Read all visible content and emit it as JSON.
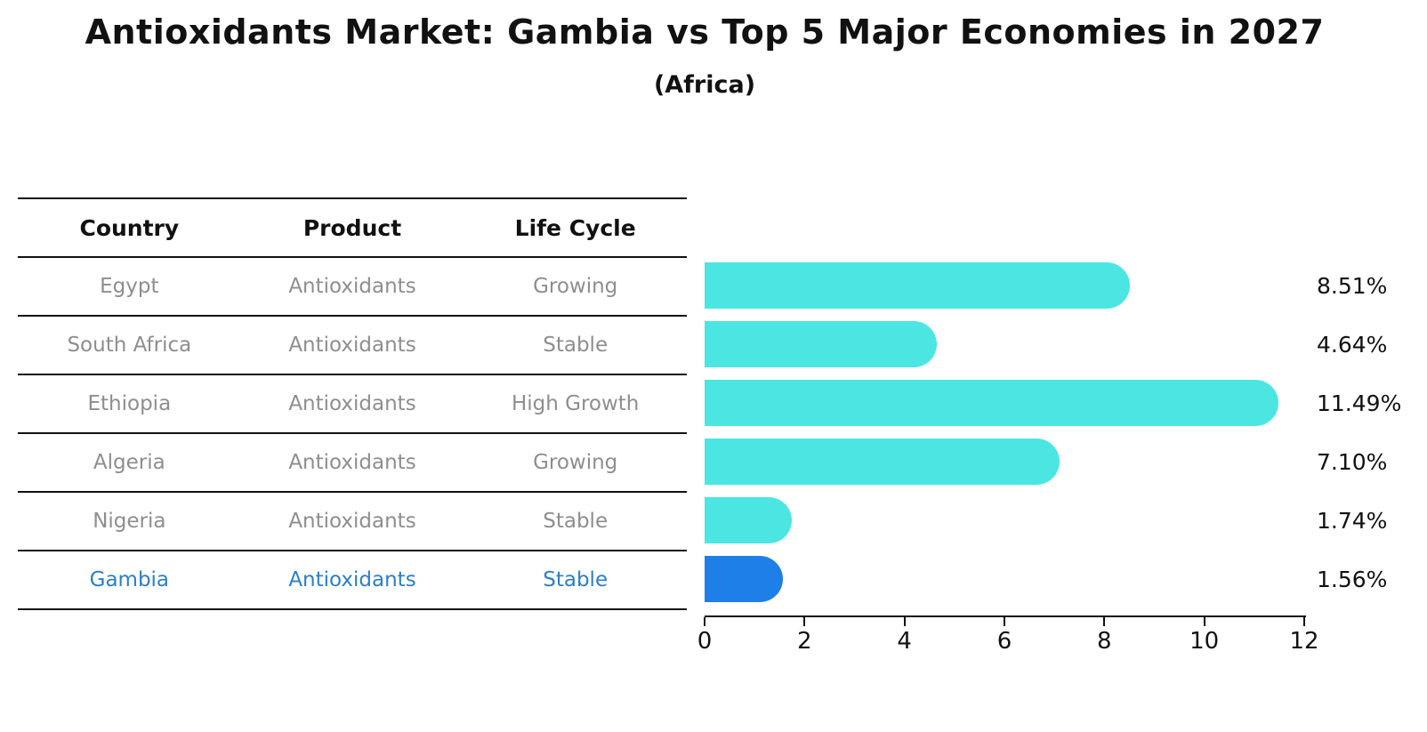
{
  "title": "Antioxidants Market: Gambia vs Top 5 Major Economies in 2027",
  "subtitle": "(Africa)",
  "table": {
    "headers": [
      "Country",
      "Product",
      "Life Cycle"
    ],
    "rows": [
      {
        "country": "Egypt",
        "product": "Antioxidants",
        "life_cycle": "Growing"
      },
      {
        "country": "South Africa",
        "product": "Antioxidants",
        "life_cycle": "Stable"
      },
      {
        "country": "Ethiopia",
        "product": "Antioxidants",
        "life_cycle": "High Growth"
      },
      {
        "country": "Algeria",
        "product": "Antioxidants",
        "life_cycle": "Growing"
      },
      {
        "country": "Nigeria",
        "product": "Antioxidants",
        "life_cycle": "Stable"
      },
      {
        "country": "Gambia",
        "product": "Antioxidants",
        "life_cycle": "Stable"
      }
    ]
  },
  "chart_data": {
    "type": "bar",
    "orientation": "horizontal",
    "categories": [
      "Egypt",
      "South Africa",
      "Ethiopia",
      "Algeria",
      "Nigeria",
      "Gambia"
    ],
    "values": [
      8.51,
      4.64,
      11.49,
      7.1,
      1.74,
      1.56
    ],
    "value_labels": [
      "8.51%",
      "4.64%",
      "11.49%",
      "7.10%",
      "1.74%",
      "1.56%"
    ],
    "x_ticks": [
      "0",
      "2",
      "4",
      "6",
      "8",
      "10",
      "12"
    ],
    "xlim": [
      0,
      12
    ],
    "grid": false,
    "legend": "none",
    "highlight_index": 5,
    "highlight_category": "Gambia"
  },
  "colors": {
    "accent_cyan": "#4BE6E1",
    "accent_blue": "#1F7FE8",
    "highlight_text": "#2B7FC7",
    "line_color": "#111111",
    "text_gray": "#8E8E8E",
    "text_dark": "#111111"
  }
}
